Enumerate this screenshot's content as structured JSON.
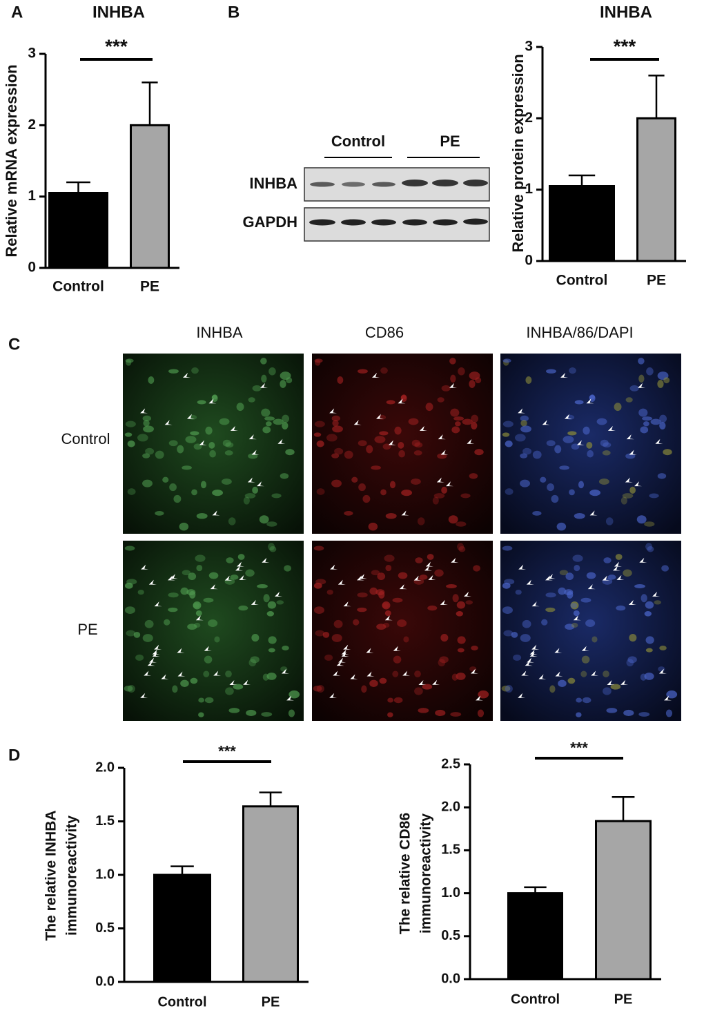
{
  "figure": {
    "panel_labels": [
      "A",
      "B",
      "C",
      "D"
    ],
    "blot": {
      "groups": [
        "Control",
        "PE"
      ],
      "rows": [
        "INHBA",
        "GAPDH"
      ]
    },
    "microscopy": {
      "columns": [
        "INHBA",
        "CD86",
        "INHBA/86/DAPI"
      ],
      "rows": [
        "Control",
        "PE"
      ]
    }
  },
  "chart_data": [
    {
      "type": "bar",
      "title": "INHBA",
      "ylabel": [
        "Relative mRNA expression"
      ],
      "categories": [
        "Control",
        "PE"
      ],
      "values": [
        1.05,
        2.0
      ],
      "errors": [
        0.15,
        0.6
      ],
      "colors": [
        "#000000",
        "#a6a6a6"
      ],
      "annotation": "***",
      "ylim": [
        0,
        3
      ],
      "yticks": [
        0,
        1,
        2,
        3
      ]
    },
    {
      "type": "bar",
      "title": "INHBA",
      "ylabel": [
        "Relative protein expression"
      ],
      "categories": [
        "Control",
        "PE"
      ],
      "values": [
        1.05,
        2.0
      ],
      "errors": [
        0.15,
        0.6
      ],
      "colors": [
        "#000000",
        "#a6a6a6"
      ],
      "annotation": "***",
      "ylim": [
        0,
        3
      ],
      "yticks": [
        0,
        1,
        2,
        3
      ]
    },
    {
      "type": "bar",
      "ylabel": [
        "The relative INHBA",
        "immunoreactivity"
      ],
      "categories": [
        "Control",
        "PE"
      ],
      "values": [
        1.0,
        1.64
      ],
      "errors": [
        0.08,
        0.13
      ],
      "colors": [
        "#000000",
        "#a6a6a6"
      ],
      "annotation": "***",
      "ylim": [
        0,
        2
      ],
      "yticks": [
        {
          "value": 0,
          "label": "0.0"
        },
        0.5,
        {
          "value": 1,
          "label": "1.0"
        },
        1.5,
        {
          "value": 2,
          "label": "2.0"
        }
      ]
    },
    {
      "type": "bar",
      "ylabel": [
        "The relative CD86",
        "immunoreactivity"
      ],
      "categories": [
        "Control",
        "PE"
      ],
      "values": [
        1.0,
        1.84
      ],
      "errors": [
        0.07,
        0.28
      ],
      "colors": [
        "#000000",
        "#a6a6a6"
      ],
      "annotation": "***",
      "ylim": [
        0,
        2.5
      ],
      "yticks": [
        {
          "value": 0,
          "label": "0.0"
        },
        0.5,
        {
          "value": 1,
          "label": "1.0"
        },
        1.5,
        {
          "value": 2,
          "label": "2.0"
        },
        2.5
      ]
    }
  ]
}
